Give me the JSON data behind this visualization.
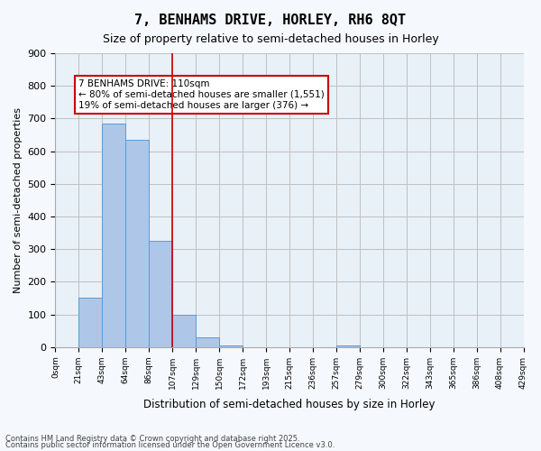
{
  "title": "7, BENHAMS DRIVE, HORLEY, RH6 8QT",
  "subtitle": "Size of property relative to semi-detached houses in Horley",
  "xlabel": "Distribution of semi-detached houses by size in Horley",
  "ylabel": "Number of semi-detached properties",
  "bin_labels": [
    "0sqm",
    "21sqm",
    "43sqm",
    "64sqm",
    "86sqm",
    "107sqm",
    "129sqm",
    "150sqm",
    "172sqm",
    "193sqm",
    "215sqm",
    "236sqm",
    "257sqm",
    "279sqm",
    "300sqm",
    "322sqm",
    "343sqm",
    "365sqm",
    "386sqm",
    "408sqm",
    "429sqm"
  ],
  "bar_values": [
    0,
    150,
    685,
    635,
    325,
    100,
    30,
    5,
    0,
    0,
    0,
    0,
    5,
    0,
    0,
    0,
    0,
    0,
    0,
    0
  ],
  "bar_color": "#aec6e8",
  "bar_edge_color": "#5b9bd5",
  "vline_x": 5,
  "vline_color": "#cc0000",
  "annotation_title": "7 BENHAMS DRIVE: 110sqm",
  "annotation_line1": "← 80% of semi-detached houses are smaller (1,551)",
  "annotation_line2": "19% of semi-detached houses are larger (376) →",
  "annotation_box_color": "#cc0000",
  "ylim": [
    0,
    900
  ],
  "yticks": [
    0,
    100,
    200,
    300,
    400,
    500,
    600,
    700,
    800,
    900
  ],
  "grid_color": "#c0c0c0",
  "bg_color": "#e8f0f8",
  "fig_bg_color": "#f5f8fd",
  "footer_line1": "Contains HM Land Registry data © Crown copyright and database right 2025.",
  "footer_line2": "Contains public sector information licensed under the Open Government Licence v3.0."
}
